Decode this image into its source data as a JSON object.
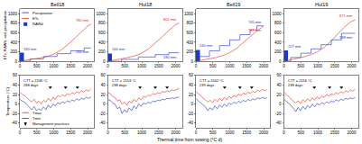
{
  "chart_data": [
    {
      "type": "line",
      "title": "Bell18",
      "ylabel": "ETc, RAWd, and precipitation",
      "legend": "upper left",
      "xlim": [
        0,
        2200
      ],
      "xticks": [
        0,
        500,
        1000,
        1500,
        2000
      ],
      "ylim": [
        0,
        1100
      ],
      "yticks": [
        0,
        200,
        400,
        600,
        800,
        1000
      ],
      "series": [
        {
          "name": "Precipitation",
          "color": "#1f2fbf",
          "x": [
            0,
            300,
            300,
            700,
            700,
            1100,
            1100,
            1500,
            1500,
            1900,
            1900,
            2100
          ],
          "values": [
            0,
            0,
            50,
            50,
            100,
            100,
            160,
            160,
            220,
            220,
            280,
            280
          ],
          "label": "280 mm"
        },
        {
          "name": "ETc",
          "color": "#e8291c",
          "x": [
            0,
            200,
            400,
            600,
            800,
            1000,
            1200,
            1400,
            1600,
            1800,
            2000,
            2100
          ],
          "values": [
            0,
            20,
            45,
            70,
            100,
            150,
            230,
            340,
            470,
            610,
            740,
            780
          ],
          "label": "780 mm"
        },
        {
          "name": "RAWd",
          "type": "bar",
          "color": "#1a3cc8",
          "x": [
            60
          ],
          "values": [
            180
          ],
          "label": "180 mm"
        }
      ]
    },
    {
      "type": "line",
      "title": "Hul18",
      "xlim": [
        0,
        2200
      ],
      "xticks": [
        0,
        500,
        1000,
        1500,
        2000
      ],
      "ylim": [
        0,
        1100
      ],
      "yticks": [
        0,
        200,
        400,
        600,
        800,
        1000
      ],
      "series": [
        {
          "name": "Precipitation",
          "color": "#1f2fbf",
          "x": [
            0,
            400,
            400,
            900,
            900,
            1400,
            1400,
            1800,
            1800,
            2100
          ],
          "values": [
            0,
            0,
            40,
            40,
            90,
            90,
            140,
            140,
            180,
            180
          ],
          "label": "180 mm"
        },
        {
          "name": "ETc",
          "color": "#e8291c",
          "x": [
            0,
            200,
            400,
            600,
            800,
            1000,
            1200,
            1400,
            1600,
            1800,
            2000,
            2100
          ],
          "values": [
            0,
            25,
            50,
            80,
            115,
            170,
            260,
            380,
            510,
            650,
            770,
            801
          ],
          "label": "801 mm"
        },
        {
          "name": "RAWd",
          "type": "bar",
          "color": "#1a3cc8",
          "x": [
            60
          ],
          "values": [
            164
          ],
          "label": "164 mm"
        }
      ]
    },
    {
      "type": "line",
      "title": "Bell19",
      "xlim": [
        0,
        2200
      ],
      "xticks": [
        0,
        500,
        1000,
        1500,
        2000
      ],
      "ylim": [
        0,
        1100
      ],
      "yticks": [
        0,
        200,
        400,
        600,
        800,
        1000
      ],
      "series": [
        {
          "name": "Precipitation",
          "color": "#1f2fbf",
          "x": [
            0,
            100,
            100,
            400,
            400,
            700,
            700,
            1000,
            1000,
            1300,
            1300,
            1600,
            1600,
            1800,
            1800,
            2000
          ],
          "values": [
            0,
            0,
            100,
            100,
            220,
            220,
            330,
            330,
            450,
            450,
            560,
            560,
            660,
            660,
            745,
            745
          ],
          "label": "745 mm"
        },
        {
          "name": "ETc",
          "color": "#e8291c",
          "x": [
            0,
            200,
            400,
            600,
            800,
            1000,
            1200,
            1400,
            1600,
            1800,
            2000
          ],
          "values": [
            0,
            25,
            50,
            80,
            120,
            180,
            270,
            390,
            520,
            640,
            737
          ],
          "label": "737 mm"
        },
        {
          "name": "RAWd",
          "type": "bar",
          "color": "#1a3cc8",
          "x": [
            60
          ],
          "values": [
            240
          ],
          "label": "240 mm"
        }
      ]
    },
    {
      "type": "line",
      "title": "Hul19",
      "xlim": [
        0,
        2200
      ],
      "xticks": [
        0,
        500,
        1000,
        1500,
        2000
      ],
      "ylim": [
        0,
        1100
      ],
      "yticks": [
        0,
        200,
        400,
        600,
        800,
        1000
      ],
      "series": [
        {
          "name": "Precipitation",
          "color": "#1f2fbf",
          "x": [
            0,
            200,
            200,
            500,
            500,
            800,
            800,
            1100,
            1100,
            1400,
            1400,
            1700,
            1700,
            2100
          ],
          "values": [
            0,
            0,
            80,
            80,
            170,
            170,
            260,
            260,
            350,
            350,
            450,
            450,
            588,
            588
          ],
          "label": "588 mm"
        },
        {
          "name": "ETc",
          "color": "#e8291c",
          "x": [
            0,
            200,
            400,
            600,
            800,
            1000,
            1200,
            1400,
            1600,
            1800,
            2000,
            2100
          ],
          "values": [
            0,
            30,
            60,
            95,
            140,
            200,
            300,
            430,
            580,
            730,
            840,
            871
          ],
          "label": "871 mm"
        },
        {
          "name": "RAWd",
          "type": "bar",
          "color": "#1a3cc8",
          "x": [
            60
          ],
          "values": [
            227
          ],
          "label": "227 mm"
        }
      ]
    },
    {
      "type": "line",
      "ylabel": "Temperature (°C)",
      "legend": "lower left",
      "annotations": [
        "CTT = 2246 °C",
        "268 days"
      ],
      "xlim": [
        0,
        2200
      ],
      "xticks": [
        0,
        500,
        1000,
        1500,
        2000
      ],
      "ylim": [
        -50,
        60
      ],
      "yticks": [
        -40,
        -20,
        0,
        20,
        40,
        60
      ],
      "series": [
        {
          "name": "Tmax",
          "color": "#e8291c",
          "x": [
            0,
            70,
            140,
            210,
            280,
            350,
            420,
            490,
            560,
            630,
            700,
            770,
            840,
            910,
            980,
            1050,
            1120,
            1190,
            1260,
            1330,
            1400,
            1470,
            1540,
            1610,
            1680,
            1750,
            1820,
            1890,
            1960,
            2030,
            2100
          ],
          "values": [
            25,
            20,
            18,
            12,
            8,
            5,
            10,
            2,
            6,
            0,
            8,
            4,
            12,
            6,
            14,
            10,
            18,
            15,
            20,
            16,
            22,
            19,
            24,
            21,
            26,
            23,
            28,
            25,
            30,
            27,
            32
          ]
        },
        {
          "name": "Tmin",
          "color": "#1f2fbf",
          "x": [
            0,
            70,
            140,
            210,
            280,
            350,
            420,
            490,
            560,
            630,
            700,
            770,
            840,
            910,
            980,
            1050,
            1120,
            1190,
            1260,
            1330,
            1400,
            1470,
            1540,
            1610,
            1680,
            1750,
            1820,
            1890,
            1960,
            2030,
            2100
          ],
          "values": [
            10,
            6,
            4,
            -2,
            -8,
            -12,
            -5,
            -14,
            -10,
            -13,
            -6,
            -12,
            -2,
            -8,
            0,
            -4,
            3,
            0,
            5,
            2,
            7,
            4,
            9,
            6,
            11,
            8,
            12,
            10,
            14,
            12,
            15
          ]
        },
        {
          "name": "Management practices",
          "color": "#000000",
          "marker": "triangle-down",
          "x": [
            900,
            1350,
            1700
          ],
          "values": [
            35,
            35,
            35
          ]
        }
      ]
    },
    {
      "type": "line",
      "annotations": [
        "CTT = 2153 °C",
        "238 days"
      ],
      "xlim": [
        0,
        2200
      ],
      "xticks": [
        0,
        500,
        1000,
        1500,
        2000
      ],
      "ylim": [
        -50,
        60
      ],
      "yticks": [
        -40,
        -20,
        0,
        20,
        40,
        60
      ],
      "series": [
        {
          "name": "Tmax",
          "color": "#e8291c",
          "x": [
            0,
            70,
            140,
            210,
            280,
            350,
            420,
            490,
            560,
            630,
            700,
            770,
            840,
            910,
            980,
            1050,
            1120,
            1190,
            1260,
            1330,
            1400,
            1470,
            1540,
            1610,
            1680,
            1750,
            1820,
            1890,
            1960,
            2030,
            2100
          ],
          "values": [
            24,
            22,
            16,
            14,
            6,
            9,
            0,
            4,
            -2,
            6,
            2,
            10,
            5,
            13,
            9,
            16,
            14,
            19,
            17,
            22,
            20,
            24,
            22,
            26,
            25,
            28,
            26,
            30,
            28,
            31,
            33
          ]
        },
        {
          "name": "Tmin",
          "color": "#1f2fbf",
          "x": [
            0,
            70,
            140,
            210,
            280,
            350,
            420,
            490,
            560,
            630,
            700,
            770,
            840,
            910,
            980,
            1050,
            1120,
            1190,
            1260,
            1330,
            1400,
            1470,
            1540,
            1610,
            1680,
            1750,
            1820,
            1890,
            1960,
            2030,
            2100
          ],
          "values": [
            9,
            8,
            2,
            0,
            -10,
            -6,
            -20,
            -12,
            -18,
            -8,
            -14,
            -4,
            -10,
            0,
            -5,
            2,
            0,
            4,
            2,
            6,
            5,
            8,
            7,
            10,
            9,
            12,
            11,
            13,
            12,
            14,
            15
          ]
        },
        {
          "name": "Management practices",
          "color": "#000000",
          "marker": "triangle-down",
          "x": [
            950,
            1400,
            1750
          ],
          "values": [
            35,
            35,
            35
          ]
        }
      ]
    },
    {
      "type": "line",
      "annotations": [
        "CTT = 2002 °C",
        "239 days"
      ],
      "xlim": [
        0,
        2200
      ],
      "xticks": [
        0,
        500,
        1000,
        1500,
        2000
      ],
      "ylim": [
        -50,
        60
      ],
      "yticks": [
        -40,
        -20,
        0,
        20,
        40,
        60
      ],
      "series": [
        {
          "name": "Tmax",
          "color": "#e8291c",
          "x": [
            0,
            70,
            140,
            210,
            280,
            350,
            420,
            490,
            560,
            630,
            700,
            770,
            840,
            910,
            980,
            1050,
            1120,
            1190,
            1260,
            1330,
            1400,
            1470,
            1540,
            1610,
            1680,
            1750,
            1820,
            1890,
            1960,
            2030,
            2100
          ],
          "values": [
            26,
            21,
            17,
            13,
            9,
            4,
            8,
            3,
            10,
            5,
            12,
            7,
            14,
            9,
            16,
            12,
            18,
            15,
            21,
            18,
            23,
            20,
            25,
            22,
            27,
            24,
            29,
            26,
            31,
            28,
            30
          ]
        },
        {
          "name": "Tmin",
          "color": "#1f2fbf",
          "x": [
            0,
            70,
            140,
            210,
            280,
            350,
            420,
            490,
            560,
            630,
            700,
            770,
            840,
            910,
            980,
            1050,
            1120,
            1190,
            1260,
            1330,
            1400,
            1470,
            1540,
            1610,
            1680,
            1750,
            1820,
            1890,
            1960,
            2030,
            2100
          ],
          "values": [
            11,
            7,
            3,
            -1,
            -6,
            -14,
            -8,
            -12,
            -4,
            -10,
            -2,
            -7,
            0,
            -5,
            2,
            -1,
            4,
            1,
            6,
            3,
            8,
            5,
            10,
            7,
            11,
            9,
            13,
            11,
            14,
            12,
            13
          ]
        },
        {
          "name": "Management practices",
          "color": "#000000",
          "marker": "triangle-down",
          "x": [
            850,
            1300,
            1650
          ],
          "values": [
            35,
            35,
            35
          ]
        }
      ]
    },
    {
      "type": "line",
      "annotations": [
        "CTT = 2116 °C",
        "238 days"
      ],
      "xlim": [
        0,
        2200
      ],
      "xticks": [
        0,
        500,
        1000,
        1500,
        2000
      ],
      "ylim": [
        -50,
        60
      ],
      "yticks": [
        -40,
        -20,
        0,
        20,
        40,
        60
      ],
      "series": [
        {
          "name": "Tmax",
          "color": "#e8291c",
          "x": [
            0,
            70,
            140,
            210,
            280,
            350,
            420,
            490,
            560,
            630,
            700,
            770,
            840,
            910,
            980,
            1050,
            1120,
            1190,
            1260,
            1330,
            1400,
            1470,
            1540,
            1610,
            1680,
            1750,
            1820,
            1890,
            1960,
            2030,
            2100
          ],
          "values": [
            25,
            20,
            15,
            11,
            6,
            2,
            7,
            1,
            9,
            4,
            11,
            6,
            13,
            8,
            15,
            11,
            17,
            14,
            20,
            17,
            22,
            19,
            24,
            21,
            26,
            23,
            28,
            25,
            30,
            27,
            31
          ]
        },
        {
          "name": "Tmin",
          "color": "#1f2fbf",
          "x": [
            0,
            70,
            140,
            210,
            280,
            350,
            420,
            490,
            560,
            630,
            700,
            770,
            840,
            910,
            980,
            1050,
            1120,
            1190,
            1260,
            1330,
            1400,
            1470,
            1540,
            1610,
            1680,
            1750,
            1820,
            1890,
            1960,
            2030,
            2100
          ],
          "values": [
            10,
            6,
            1,
            -3,
            -9,
            -16,
            -7,
            -14,
            -5,
            -11,
            -3,
            -8,
            0,
            -6,
            1,
            -2,
            3,
            0,
            5,
            2,
            7,
            4,
            9,
            6,
            10,
            8,
            12,
            10,
            13,
            11,
            14
          ]
        },
        {
          "name": "Management practices",
          "color": "#000000",
          "marker": "triangle-down",
          "x": [
            900,
            1350,
            1700
          ],
          "values": [
            35,
            35,
            35
          ]
        }
      ]
    }
  ],
  "xlabel": "Thermal time from sowing (°C d)"
}
